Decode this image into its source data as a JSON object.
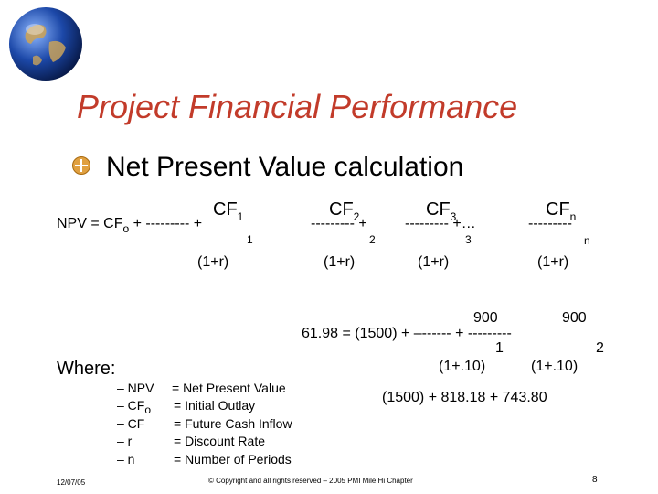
{
  "title": "Project Financial Performance",
  "bullet": "Net Present Value calculation",
  "formula": {
    "cf1": "CF1",
    "npv_lhs": "NPV = CF",
    "cf0_sub": "o",
    "npv_mid": " + ---------  +",
    "exp1": "1",
    "den1": "(1+r)",
    "cf2": "CF2",
    "dash2": "--------- +",
    "exp2": "2",
    "den2": "(1+r)",
    "cf3": "CF3",
    "dash3": "--------- +…",
    "exp3": "3",
    "den3": "(1+r)",
    "cfn": "CFn",
    "dashn": "---------",
    "expn": "n",
    "denn": "(1+r)"
  },
  "example": {
    "num1": "900",
    "num2": "900",
    "line": "61.98 = (1500) + –------  +  ---------",
    "exp1": "1",
    "exp2": "2",
    "den1": "(1+.10)",
    "den2": "(1+.10)",
    "result": "(1500) + 818.18  +  743.80"
  },
  "where": {
    "label": "Where:",
    "items": [
      {
        "sym": "– NPV",
        "def": "= Net Present Value"
      },
      {
        "sym": "– CF",
        "sub": "o",
        "def": "= Initial Outlay"
      },
      {
        "sym": "– CF",
        "def": "=  Future Cash Inflow"
      },
      {
        "sym": "– r",
        "def": "= Discount Rate"
      },
      {
        "sym": "– n",
        "def": "= Number of Periods"
      }
    ]
  },
  "footer": {
    "date": "12/07/05",
    "copyright": "© Copyright and all rights reserved – 2005 PMI Mile Hi Chapter",
    "page": "8"
  }
}
